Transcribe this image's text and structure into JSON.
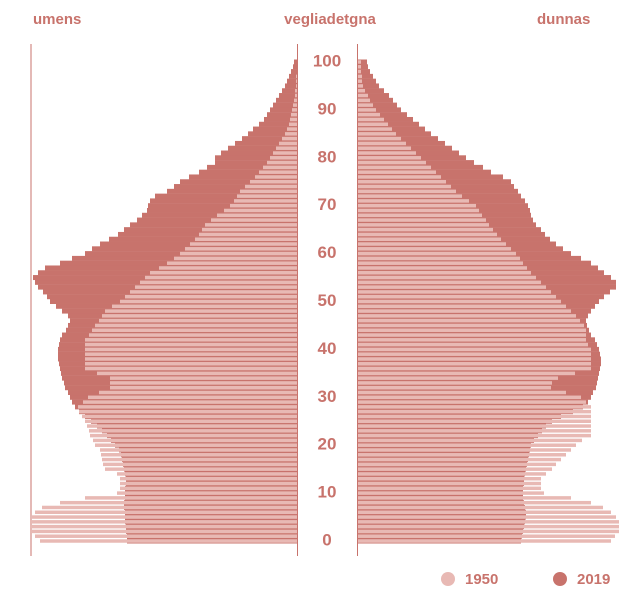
{
  "chart_data": {
    "type": "pyramid",
    "left_label": "umens",
    "center_label": "vegliadetgna",
    "right_label": "dunnas",
    "categories": [
      0,
      null,
      null,
      null,
      null,
      null,
      null,
      null,
      null,
      null,
      10,
      null,
      null,
      null,
      null,
      null,
      null,
      null,
      null,
      null,
      20,
      null,
      null,
      null,
      null,
      null,
      null,
      null,
      null,
      null,
      30,
      null,
      null,
      null,
      null,
      null,
      null,
      null,
      null,
      null,
      40,
      null,
      null,
      null,
      null,
      null,
      null,
      null,
      null,
      null,
      50,
      null,
      null,
      null,
      null,
      null,
      null,
      null,
      null,
      null,
      60,
      null,
      null,
      null,
      null,
      null,
      null,
      null,
      null,
      null,
      70,
      null,
      null,
      null,
      null,
      null,
      null,
      null,
      null,
      null,
      80,
      null,
      null,
      null,
      null,
      null,
      null,
      null,
      null,
      null,
      90,
      null,
      null,
      null,
      null,
      null,
      null,
      null,
      null,
      null,
      100
    ],
    "xlim": [
      0,
      266
    ],
    "series": [
      {
        "name": "2019",
        "color": "#c8736c",
        "men": [
          170,
          170,
          171,
          171,
          172,
          172,
          172,
          173,
          173,
          172,
          172,
          172,
          171,
          171,
          172,
          173,
          174,
          175,
          176,
          178,
          182,
          186,
          190,
          195,
          200,
          206,
          212,
          218,
          222,
          225,
          227,
          229,
          232,
          233,
          235,
          236,
          237,
          238,
          239,
          239,
          239,
          238,
          237,
          235,
          231,
          229,
          227,
          229,
          235,
          241,
          247,
          250,
          254,
          259,
          262,
          264,
          259,
          252,
          237,
          225,
          212,
          205,
          197,
          188,
          179,
          173,
          167,
          160,
          155,
          150,
          149,
          147,
          142,
          130,
          123,
          117,
          108,
          98,
          90,
          82,
          82,
          76,
          69,
          62,
          55,
          49,
          44,
          38,
          33,
          30,
          27,
          24,
          21,
          18,
          15,
          12,
          10,
          8,
          6,
          4,
          3
        ],
        "women": [
          163,
          164,
          165,
          166,
          167,
          168,
          168,
          167,
          166,
          165,
          165,
          165,
          166,
          166,
          167,
          168,
          169,
          170,
          171,
          172,
          173,
          176,
          180,
          184,
          188,
          194,
          203,
          215,
          225,
          230,
          233,
          235,
          238,
          239,
          240,
          241,
          242,
          243,
          243,
          242,
          241,
          239,
          237,
          233,
          231,
          229,
          228,
          230,
          233,
          237,
          241,
          246,
          252,
          258,
          258,
          253,
          246,
          240,
          233,
          223,
          213,
          205,
          198,
          192,
          187,
          183,
          178,
          175,
          173,
          172,
          170,
          167,
          163,
          160,
          156,
          153,
          145,
          133,
          125,
          116,
          108,
          101,
          94,
          87,
          80,
          73,
          67,
          61,
          55,
          49,
          43,
          39,
          35,
          31,
          26,
          21,
          18,
          15,
          12,
          10,
          9
        ]
      },
      {
        "name": "1950",
        "color": "#e8b9b4",
        "men": [
          257,
          262,
          267,
          267,
          267,
          265,
          262,
          255,
          237,
          212,
          180,
          177,
          177,
          177,
          180,
          192,
          194,
          195,
          196,
          197,
          202,
          204,
          207,
          208,
          210,
          212,
          215,
          218,
          219,
          214,
          209,
          198,
          187,
          187,
          187,
          200,
          212,
          212,
          212,
          212,
          212,
          212,
          212,
          208,
          205,
          202,
          198,
          195,
          192,
          185,
          177,
          172,
          167,
          162,
          157,
          152,
          147,
          138,
          130,
          123,
          117,
          112,
          107,
          102,
          98,
          95,
          92,
          86,
          80,
          73,
          67,
          63,
          60,
          57,
          52,
          47,
          42,
          38,
          34,
          30,
          27,
          24,
          21,
          18,
          15,
          12,
          10,
          8,
          7,
          6,
          5,
          4,
          3,
          2,
          2,
          1,
          1,
          1,
          0,
          0,
          0
        ],
        "women": [
          253,
          257,
          261,
          261,
          261,
          258,
          253,
          245,
          233,
          213,
          186,
          183,
          183,
          183,
          188,
          194,
          198,
          203,
          208,
          213,
          218,
          224,
          233,
          233,
          233,
          233,
          233,
          233,
          233,
          228,
          223,
          208,
          193,
          194,
          200,
          217,
          233,
          233,
          233,
          233,
          233,
          230,
          228,
          228,
          228,
          226,
          222,
          218,
          213,
          208,
          203,
          198,
          193,
          188,
          183,
          178,
          173,
          169,
          165,
          162,
          158,
          153,
          148,
          143,
          139,
          135,
          131,
          128,
          124,
          121,
          118,
          111,
          104,
          98,
          93,
          88,
          83,
          78,
          73,
          68,
          63,
          58,
          53,
          48,
          43,
          38,
          34,
          30,
          26,
          22,
          18,
          15,
          12,
          10,
          7,
          5,
          4,
          4,
          3,
          3,
          3
        ]
      }
    ]
  }
}
